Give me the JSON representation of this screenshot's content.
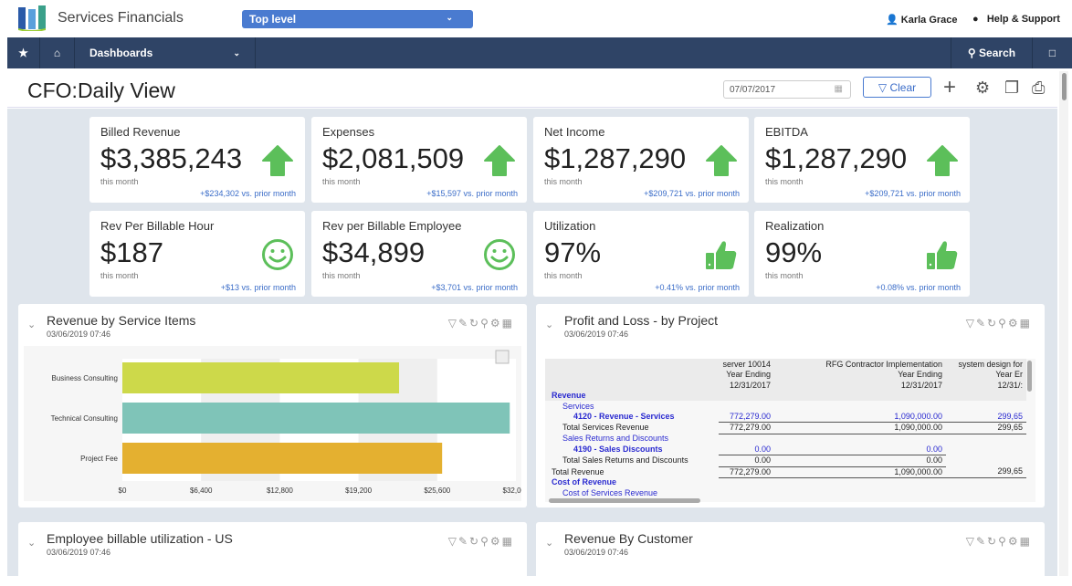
{
  "header": {
    "app_name": "Services Financials",
    "scope_select": "Top level",
    "user": "Karla Grace",
    "help": "Help & Support"
  },
  "nav": {
    "menu": "Dashboards",
    "search": "Search"
  },
  "page": {
    "title": "CFO:Daily View",
    "date": "07/07/2017",
    "clear": "Clear"
  },
  "kpis": [
    {
      "label": "Billed Revenue",
      "value": "$3,385,243",
      "sub": "this month",
      "delta": "+$234,302 vs. prior month",
      "icon": "arrow-up-icon"
    },
    {
      "label": "Expenses",
      "value": "$2,081,509",
      "sub": "this month",
      "delta": "+$15,597 vs. prior month",
      "icon": "arrow-up-icon"
    },
    {
      "label": "Net Income",
      "value": "$1,287,290",
      "sub": "this month",
      "delta": "+$209,721 vs. prior month",
      "icon": "arrow-up-icon"
    },
    {
      "label": "EBITDA",
      "value": "$1,287,290",
      "sub": "this month",
      "delta": "+$209,721 vs. prior month",
      "icon": "arrow-up-icon"
    },
    {
      "label": "Rev Per Billable Hour",
      "value": "$187",
      "sub": "this month",
      "delta": "+$13 vs. prior month",
      "icon": "smiley-icon"
    },
    {
      "label": "Rev per Billable Employee",
      "value": "$34,899",
      "sub": "this month",
      "delta": "+$3,701 vs. prior month",
      "icon": "smiley-icon"
    },
    {
      "label": "Utilization",
      "value": "97%",
      "sub": "this month",
      "delta": "+0.41% vs. prior month",
      "icon": "thumbs-up-icon"
    },
    {
      "label": "Realization",
      "value": "99%",
      "sub": "this month",
      "delta": "+0.08% vs. prior month",
      "icon": "thumbs-up-icon"
    }
  ],
  "panels": [
    {
      "title": "Revenue by Service Items",
      "date": "03/06/2019 07:46"
    },
    {
      "title": "Profit and Loss - by Project",
      "date": "03/06/2019 07:46"
    },
    {
      "title": "Employee billable utilization - US",
      "date": "03/06/2019 07:46"
    },
    {
      "title": "Revenue By Customer",
      "date": "03/06/2019 07:46"
    }
  ],
  "chart_data": {
    "type": "bar",
    "orientation": "horizontal",
    "categories": [
      "Business Consulting",
      "Technical Consulting",
      "Project Fee"
    ],
    "values": [
      22500,
      31500,
      26000
    ],
    "colors": [
      "#cdd94a",
      "#7fc4b8",
      "#e4b030"
    ],
    "xlim": [
      0,
      32000
    ],
    "xticks": [
      "$0",
      "$6,400",
      "$12,800",
      "$19,200",
      "$25,600",
      "$32,000"
    ],
    "grid": "alternating bands"
  },
  "pl_table": {
    "headers": [
      [
        "server 10014",
        "Year Ending",
        "12/31/2017"
      ],
      [
        "RFG Contractor Implementation",
        "Year Ending",
        "12/31/2017"
      ],
      [
        "system design for",
        "Year Er",
        "12/31/:"
      ]
    ],
    "rows": [
      {
        "label": "Revenue",
        "vals": [
          "",
          "",
          ""
        ],
        "style": "blue bold",
        "indent": 0
      },
      {
        "label": "Services",
        "vals": [
          "",
          "",
          ""
        ],
        "style": "blue",
        "indent": 1
      },
      {
        "label": "4120 - Revenue - Services",
        "vals": [
          "772,279.00",
          "1,090,000.00",
          "299,65"
        ],
        "style": "blue bold",
        "indent": 2
      },
      {
        "label": "Total Services Revenue",
        "vals": [
          "772,279.00",
          "1,090,000.00",
          "299,65"
        ],
        "style": "",
        "indent": 1
      },
      {
        "label": "Sales Returns and Discounts",
        "vals": [
          "",
          "",
          ""
        ],
        "style": "blue",
        "indent": 1
      },
      {
        "label": "4190 - Sales Discounts",
        "vals": [
          "0.00",
          "0.00",
          ""
        ],
        "style": "blue bold",
        "indent": 2
      },
      {
        "label": "Total Sales Returns and Discounts",
        "vals": [
          "0.00",
          "0.00",
          ""
        ],
        "style": "",
        "indent": 1
      },
      {
        "label": "Total Revenue",
        "vals": [
          "772,279.00",
          "1,090,000.00",
          "299,65"
        ],
        "style": "",
        "indent": 0
      },
      {
        "label": "Cost of Revenue",
        "vals": [
          "",
          "",
          ""
        ],
        "style": "blue bold",
        "indent": 0
      },
      {
        "label": "Cost of Services Revenue",
        "vals": [
          "",
          "",
          ""
        ],
        "style": "blue",
        "indent": 1
      }
    ]
  }
}
